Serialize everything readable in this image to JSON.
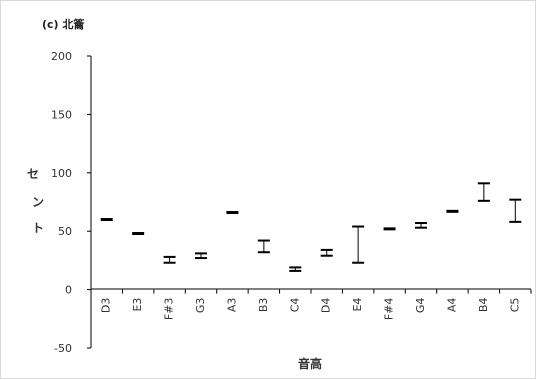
{
  "chart_data": {
    "type": "range",
    "title": "(c) 北籥",
    "xlabel": "音高",
    "ylabel": "セント",
    "ylim": [
      -50,
      200
    ],
    "yticks": [
      -50,
      0,
      50,
      100,
      150,
      200
    ],
    "grid": false,
    "categories": [
      "D3",
      "E3",
      "F#3",
      "G3",
      "A3",
      "B3",
      "C4",
      "D4",
      "E4",
      "F#4",
      "G4",
      "A4",
      "B4",
      "C5"
    ],
    "series": [
      {
        "low": [
          60,
          48,
          23,
          27,
          66,
          32,
          16,
          29,
          23,
          51,
          53,
          67,
          76,
          58
        ],
        "high": [
          60,
          48,
          28,
          31,
          66,
          42,
          19,
          34,
          54,
          53,
          57,
          67,
          91,
          77
        ]
      }
    ],
    "colors": {
      "line": "#000000",
      "axis": "#000000",
      "frame": "#d9d9d9"
    }
  }
}
